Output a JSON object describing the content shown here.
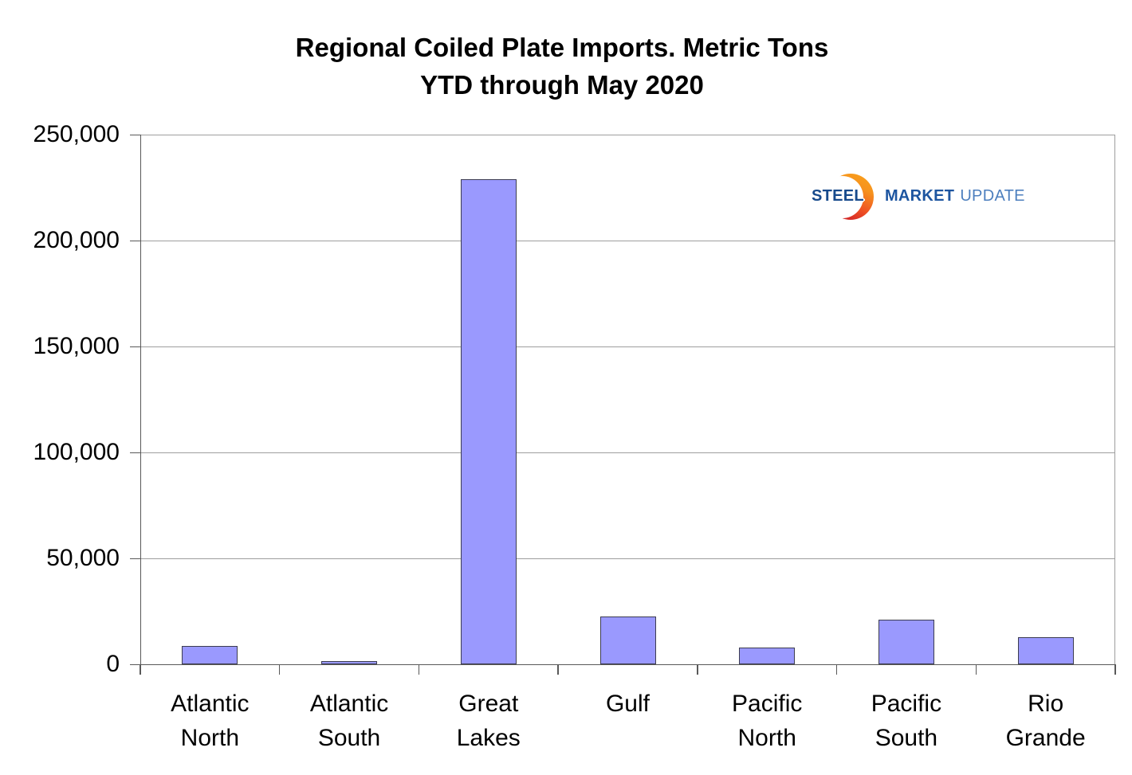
{
  "page": {
    "background": "#ffffff"
  },
  "title": {
    "line1": "Regional Coiled Plate Imports. Metric Tons",
    "line2": "YTD through May 2020"
  },
  "logo": {
    "steel": "STEEL",
    "market": "MARKET",
    "update": "UPDATE",
    "colors": {
      "steel": "#174a8c",
      "market": "#1d55a0",
      "update": "#4d7fbe",
      "crescent_top": "#f6921e",
      "crescent_bottom": "#c42127"
    }
  },
  "chart_data": {
    "type": "bar",
    "title": "Regional Coiled Plate Imports. Metric Tons YTD through May 2020",
    "categories": [
      "Atlantic North",
      "Atlantic South",
      "Great Lakes",
      "Gulf",
      "Pacific North",
      "Pacific South",
      "Rio Grande"
    ],
    "values": [
      8500,
      1500,
      229000,
      22500,
      7800,
      21200,
      12800
    ],
    "xlabel": "",
    "ylabel": "",
    "ylim": [
      0,
      250000
    ],
    "yticks": [
      0,
      50000,
      100000,
      150000,
      200000,
      250000
    ],
    "ytick_labels": [
      "0",
      "50,000",
      "100,000",
      "150,000",
      "200,000",
      "250,000"
    ],
    "grid": true,
    "legend": false,
    "bar_fill": "#9a99fe",
    "bar_border": "#3c3c50",
    "gridline_color": "#9e9e9e",
    "axis_color": "#595959"
  }
}
